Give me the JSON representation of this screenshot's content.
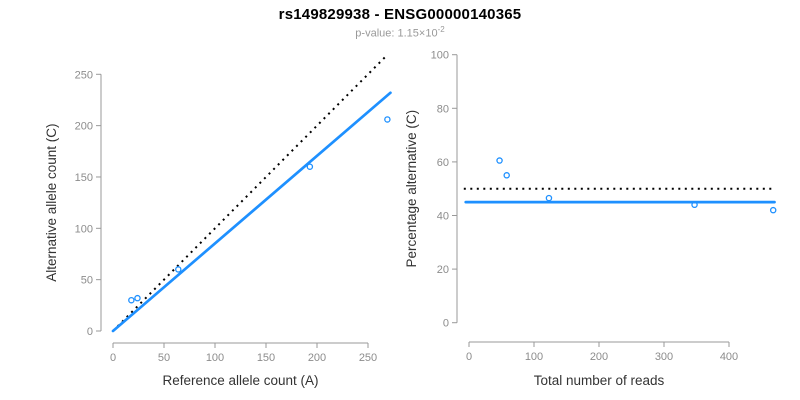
{
  "header": {
    "title": "rs149829938 - ENSG00000140365",
    "subtitle_label": "p-value: ",
    "subtitle_value": "1.15×10",
    "subtitle_exponent": "-2"
  },
  "colors": {
    "accent_blue": "#1E90FF",
    "dotted_black": "#000000",
    "axis": "#999999",
    "tick_text": "#8c8c8c",
    "axis_title_text": "#333333",
    "title_text": "#000000",
    "subtitle_text": "#999999"
  },
  "chart_data": [
    {
      "type": "scatter",
      "name": "allele-counts-scatter",
      "xlabel": "Reference allele count (A)",
      "ylabel": "Alternative allele count (C)",
      "xlim": [
        0,
        270
      ],
      "ylim": [
        0,
        270
      ],
      "xticks": [
        0,
        50,
        100,
        150,
        200,
        250
      ],
      "yticks": [
        0,
        50,
        100,
        150,
        200,
        250
      ],
      "grid": false,
      "legend": null,
      "points": [
        [
          18,
          30
        ],
        [
          24,
          32
        ],
        [
          64,
          60
        ],
        [
          193,
          160
        ],
        [
          269,
          206
        ]
      ],
      "lines": [
        {
          "name": "identity-line",
          "style": "dotted",
          "color": "#000000",
          "x1": 0,
          "y1": 0,
          "x2": 269,
          "y2": 269
        },
        {
          "name": "regression-line",
          "style": "solid",
          "color": "#1E90FF",
          "x1": 0,
          "y1": 0,
          "x2": 272,
          "y2": 232
        }
      ]
    },
    {
      "type": "scatter",
      "name": "percentage-alternative-scatter",
      "xlabel": "Total number of reads",
      "ylabel": "Percentage alternative (C)",
      "xlim": [
        0,
        470
      ],
      "ylim": [
        0,
        100
      ],
      "xticks": [
        0,
        100,
        200,
        300,
        400
      ],
      "yticks": [
        0,
        20,
        40,
        60,
        80,
        100
      ],
      "grid": false,
      "legend": null,
      "points": [
        [
          47,
          60.5
        ],
        [
          58,
          55
        ],
        [
          123,
          46.5
        ],
        [
          347,
          44
        ],
        [
          468,
          42
        ]
      ],
      "lines": [
        {
          "name": "expected-50-line",
          "style": "dotted",
          "color": "#000000",
          "x1": -8,
          "y1": 50,
          "x2": 467,
          "y2": 50
        },
        {
          "name": "fitted-percentage-line",
          "style": "solid",
          "color": "#1E90FF",
          "x1": -5,
          "y1": 45,
          "x2": 470,
          "y2": 45
        }
      ]
    }
  ]
}
